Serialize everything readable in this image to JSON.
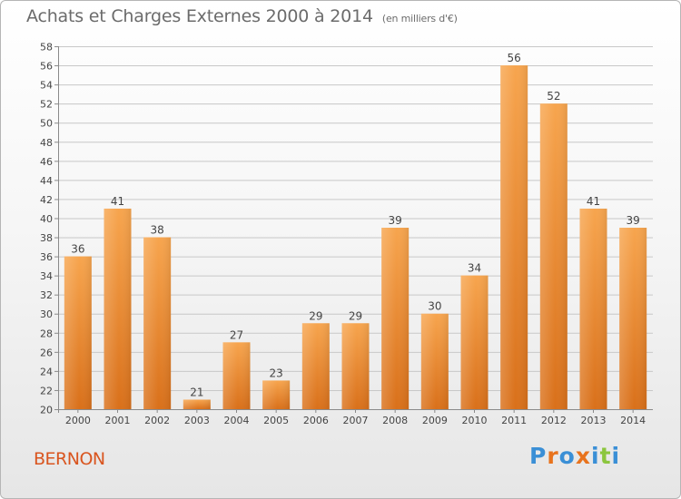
{
  "header": {
    "title": "Achats et Charges Externes 2000 à 2014",
    "subtitle": "(en milliers d'€)"
  },
  "footer": {
    "place": "BERNON",
    "brand": "Proxiti",
    "brand_letters": [
      "P",
      "r",
      "o",
      "x",
      "i",
      "t",
      "i"
    ],
    "brand_colors": [
      "#3a8fd6",
      "#e8731d",
      "#3a8fd6",
      "#e8731d",
      "#3a8fd6",
      "#8cc63e",
      "#3a8fd6"
    ]
  },
  "chart_data": {
    "type": "bar",
    "title": "Achats et Charges Externes 2000 à 2014",
    "subtitle": "(en milliers d'€)",
    "xlabel": "",
    "ylabel": "",
    "categories": [
      "2000",
      "2001",
      "2002",
      "2003",
      "2004",
      "2005",
      "2006",
      "2007",
      "2008",
      "2009",
      "2010",
      "2011",
      "2012",
      "2013",
      "2014"
    ],
    "values": [
      36,
      41,
      38,
      21,
      27,
      23,
      29,
      29,
      39,
      30,
      34,
      56,
      52,
      41,
      39
    ],
    "ylim": [
      20,
      58
    ],
    "yticks": [
      20,
      22,
      24,
      26,
      28,
      30,
      32,
      34,
      36,
      38,
      40,
      42,
      44,
      46,
      48,
      50,
      52,
      54,
      56,
      58
    ],
    "grid": true,
    "bar_color_top": "#f7a54e",
    "bar_color_bottom": "#d9701a"
  }
}
